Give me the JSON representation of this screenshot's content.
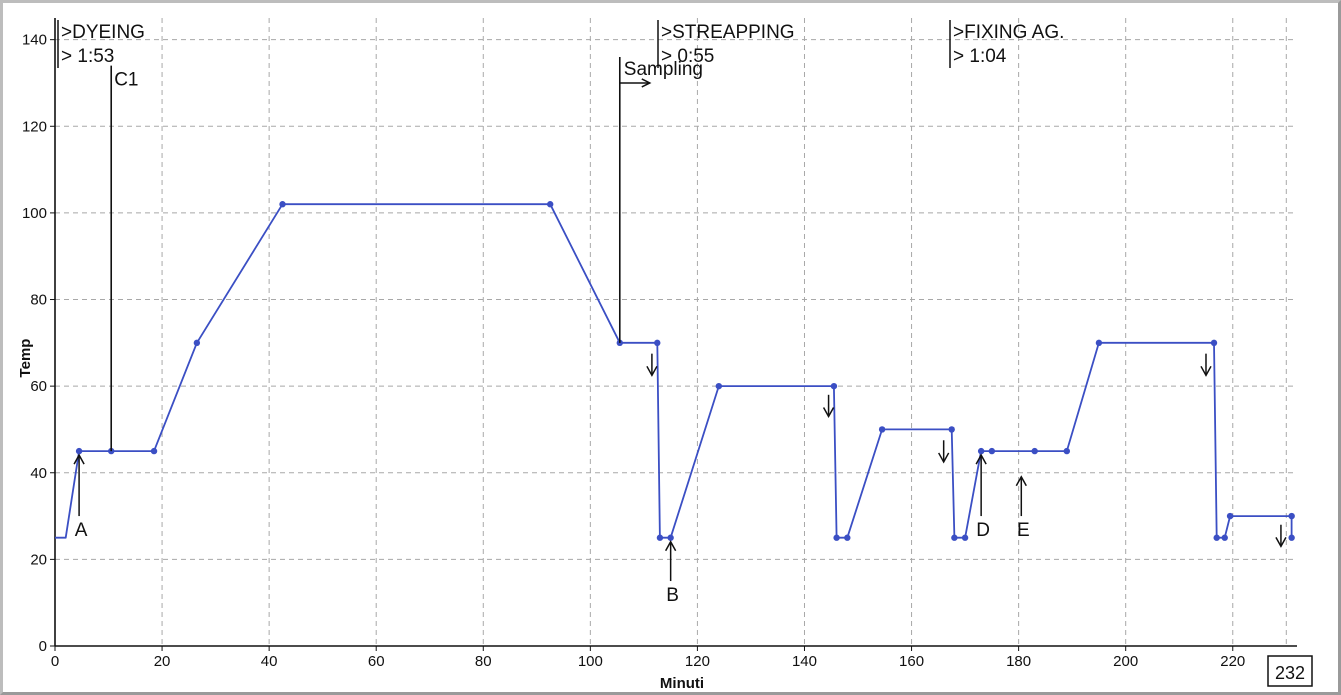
{
  "chart_data": {
    "type": "line",
    "xlabel": "Minuti",
    "ylabel": "Temp",
    "xlim": [
      0,
      232
    ],
    "ylim": [
      0,
      145
    ],
    "xticks": [
      0,
      20,
      40,
      60,
      80,
      100,
      120,
      140,
      160,
      180,
      200,
      220
    ],
    "yticks": [
      0,
      20,
      40,
      60,
      80,
      100,
      120,
      140
    ],
    "grid": true,
    "end_label": "232",
    "series": [
      {
        "color": "#3b4fc4",
        "points": [
          [
            0,
            25
          ],
          [
            2,
            25
          ],
          [
            4.5,
            45
          ],
          [
            10.5,
            45
          ],
          [
            18.5,
            45
          ],
          [
            26.5,
            70
          ],
          [
            42.5,
            102
          ],
          [
            92.5,
            102
          ],
          [
            105.5,
            70
          ],
          [
            112.5,
            70
          ],
          [
            113,
            25
          ],
          [
            115,
            25
          ],
          [
            124,
            60
          ],
          [
            145.5,
            60
          ],
          [
            146,
            25
          ],
          [
            148,
            25
          ],
          [
            154.5,
            50
          ],
          [
            167.5,
            50
          ],
          [
            168,
            25
          ],
          [
            170,
            25
          ],
          [
            173,
            45
          ],
          [
            175,
            45
          ],
          [
            183,
            45
          ],
          [
            189,
            45
          ],
          [
            195,
            70
          ],
          [
            216.5,
            70
          ],
          [
            217,
            25
          ],
          [
            218.5,
            25
          ],
          [
            219.5,
            30
          ],
          [
            231,
            30
          ],
          [
            231,
            25
          ]
        ],
        "markers": [
          [
            4.5,
            45
          ],
          [
            10.5,
            45
          ],
          [
            18.5,
            45
          ],
          [
            26.5,
            70
          ],
          [
            42.5,
            102
          ],
          [
            92.5,
            102
          ],
          [
            105.5,
            70
          ],
          [
            112.5,
            70
          ],
          [
            113,
            25
          ],
          [
            115,
            25
          ],
          [
            124,
            60
          ],
          [
            145.5,
            60
          ],
          [
            146,
            25
          ],
          [
            148,
            25
          ],
          [
            154.5,
            50
          ],
          [
            167.5,
            50
          ],
          [
            168,
            25
          ],
          [
            170,
            25
          ],
          [
            173,
            45
          ],
          [
            175,
            45
          ],
          [
            183,
            45
          ],
          [
            189,
            45
          ],
          [
            195,
            70
          ],
          [
            216.5,
            70
          ],
          [
            217,
            25
          ],
          [
            218.5,
            25
          ],
          [
            219.5,
            30
          ],
          [
            231,
            30
          ],
          [
            231,
            25
          ]
        ]
      }
    ],
    "phases": [
      {
        "name": ">DYEING",
        "duration": "> 1:53",
        "x": 0
      },
      {
        "name": ">STREAPPING",
        "duration": "> 0:55",
        "x": 113
      },
      {
        "name": ">FIXING AG.",
        "duration": "> 1:04",
        "x": 170
      }
    ],
    "annotations": [
      {
        "type": "up-arrow",
        "label": "A",
        "x": 4.5,
        "y_from": 30,
        "y_to": 45
      },
      {
        "type": "up-arrow",
        "label": "B",
        "x": 115,
        "y_from": 15,
        "y_to": 25
      },
      {
        "type": "up-arrow",
        "label": "D",
        "x": 173,
        "y_from": 30,
        "y_to": 45
      },
      {
        "type": "up-arrow",
        "label": "E",
        "x": 180.5,
        "y_from": 30,
        "y_to": 40
      },
      {
        "type": "flag",
        "label": "C1",
        "x": 10.5,
        "y_from": 45,
        "y_to": 134
      },
      {
        "type": "flag-arrow",
        "label": "Sampling",
        "x": 105.5,
        "y_from": 70,
        "y_to": 136
      },
      {
        "type": "down-arrow",
        "x": 111.5,
        "y_from": 67.5,
        "y_to": 62.5
      },
      {
        "type": "down-arrow",
        "x": 144.5,
        "y_from": 58,
        "y_to": 53
      },
      {
        "type": "down-arrow",
        "x": 166,
        "y_from": 47.5,
        "y_to": 42.5
      },
      {
        "type": "down-arrow",
        "x": 215,
        "y_from": 67.5,
        "y_to": 62.5
      },
      {
        "type": "down-arrow",
        "x": 229,
        "y_from": 28,
        "y_to": 23
      }
    ]
  }
}
